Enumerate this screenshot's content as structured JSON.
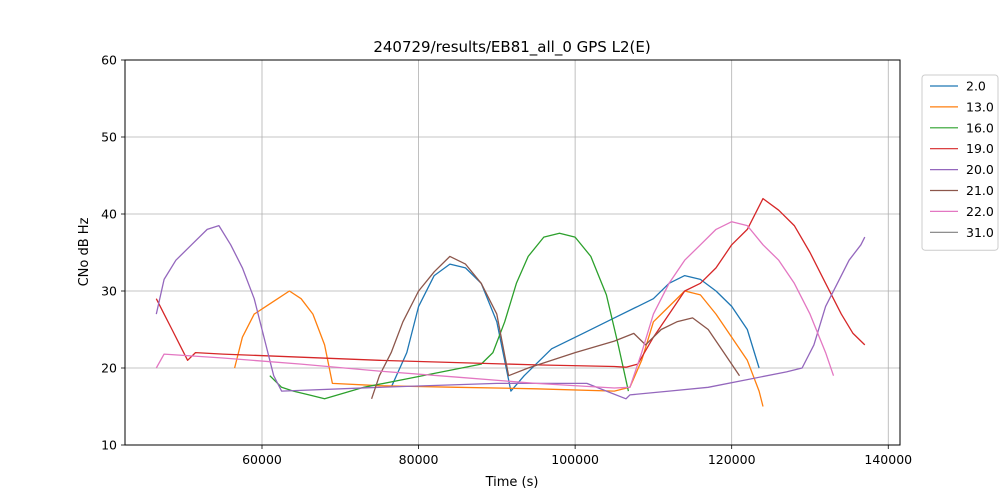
{
  "chart_data": {
    "type": "line",
    "title": "240729/results/EB81_all_0 GPS L2(E)",
    "xlabel": "Time (s)",
    "ylabel": "CNo dB Hz",
    "xlim": [
      42500,
      141500
    ],
    "ylim": [
      10,
      60
    ],
    "xticks": [
      60000,
      80000,
      100000,
      120000,
      140000
    ],
    "yticks": [
      10,
      20,
      30,
      40,
      50,
      60
    ],
    "grid": true,
    "legend_position": "outside-right",
    "series": [
      {
        "name": "2.0",
        "color": "#1f77b4",
        "x": [
          76500,
          78500,
          80000,
          82000,
          84000,
          86000,
          88000,
          90000,
          91800,
          93500,
          97000,
          101000,
          105000,
          108000,
          110000,
          112000,
          114000,
          116000,
          118000,
          120000,
          122000,
          123500
        ],
        "y": [
          17.5,
          22,
          28,
          32,
          33.5,
          33,
          31,
          26,
          17,
          19,
          22.5,
          24.5,
          26.5,
          28,
          29,
          31,
          32,
          31.5,
          30,
          28,
          25,
          20
        ]
      },
      {
        "name": "13.0",
        "color": "#ff7f0e",
        "x": [
          56500,
          57500,
          59000,
          60500,
          62000,
          63500,
          65000,
          66500,
          68000,
          69000,
          75000,
          85000,
          95000,
          105000,
          107000,
          108500,
          110000,
          112000,
          114000,
          116000,
          118000,
          120000,
          122000,
          123500,
          124000
        ],
        "y": [
          20,
          24,
          27,
          28,
          29,
          30,
          29,
          27,
          23,
          18,
          17.7,
          17.5,
          17.3,
          17,
          17.5,
          21,
          26,
          28,
          30,
          29.5,
          27,
          24,
          21,
          17,
          15
        ]
      },
      {
        "name": "16.0",
        "color": "#2ca02c",
        "x": [
          61000,
          62500,
          64000,
          66000,
          68000,
          73000,
          78000,
          83000,
          88000,
          89500,
          91000,
          92500,
          94000,
          96000,
          98000,
          100000,
          102000,
          104000,
          105500,
          106800
        ],
        "y": [
          19,
          17.5,
          17,
          16.5,
          16,
          17.5,
          18.5,
          19.5,
          20.5,
          22,
          26,
          31,
          34.5,
          37,
          37.5,
          37,
          34.5,
          29.5,
          23,
          17
        ]
      },
      {
        "name": "19.0",
        "color": "#d62728",
        "x": [
          46500,
          47500,
          48500,
          49500,
          50500,
          51500,
          55000,
          65000,
          75000,
          85000,
          95000,
          105000,
          106500,
          108000,
          110000,
          112000,
          114000,
          116000,
          118000,
          120000,
          122000,
          124000,
          126000,
          128000,
          130000,
          132000,
          134000,
          135500,
          137000
        ],
        "y": [
          29,
          27,
          25,
          23,
          21,
          22,
          21.8,
          21.4,
          21,
          20.7,
          20.4,
          20.2,
          20.1,
          20.5,
          24,
          27,
          30,
          31,
          33,
          36,
          38,
          42,
          40.5,
          38.5,
          35,
          31,
          27,
          24.5,
          23
        ]
      },
      {
        "name": "20.0",
        "color": "#9467bd",
        "x": [
          46500,
          47500,
          49000,
          51000,
          53000,
          54500,
          56000,
          57500,
          59000,
          60500,
          61500,
          62500,
          75000,
          90000,
          101500,
          104000,
          106500,
          107000,
          112000,
          117000,
          122000,
          127000,
          129000,
          130500,
          132000,
          133500,
          135000,
          136500,
          137000
        ],
        "y": [
          27,
          31.5,
          34,
          36,
          38,
          38.5,
          36,
          33,
          29,
          23,
          19,
          17,
          17.5,
          18,
          18,
          17,
          16,
          16.5,
          17,
          17.5,
          18.5,
          19.5,
          20,
          23,
          28,
          31,
          34,
          36,
          37
        ]
      },
      {
        "name": "21.0",
        "color": "#8c564b",
        "x": [
          74000,
          75000,
          76500,
          78000,
          80000,
          82000,
          84000,
          86000,
          88000,
          90000,
          91500,
          94000,
          100000,
          105000,
          107500,
          109000,
          111000,
          113000,
          115000,
          117000,
          119000,
          121000
        ],
        "y": [
          16,
          19,
          22,
          26,
          30,
          32.5,
          34.5,
          33.5,
          31,
          27,
          19,
          20,
          22,
          23.5,
          24.5,
          23,
          25,
          26,
          26.5,
          25,
          22,
          19
        ]
      },
      {
        "name": "22.0",
        "color": "#e377c2",
        "x": [
          46500,
          47500,
          55000,
          65000,
          75000,
          85000,
          95000,
          105000,
          107000,
          108500,
          110000,
          112000,
          114000,
          116000,
          118000,
          120000,
          122000,
          124000,
          126000,
          128000,
          130000,
          132000,
          133000
        ],
        "y": [
          20,
          21.8,
          21.3,
          20.5,
          19.6,
          18.8,
          18,
          17.4,
          17.5,
          22,
          27,
          31,
          34,
          36,
          38,
          39,
          38.5,
          36,
          34,
          31,
          27,
          22,
          19
        ]
      },
      {
        "name": "31.0",
        "color": "#7f7f7f",
        "x": [],
        "y": []
      }
    ]
  }
}
